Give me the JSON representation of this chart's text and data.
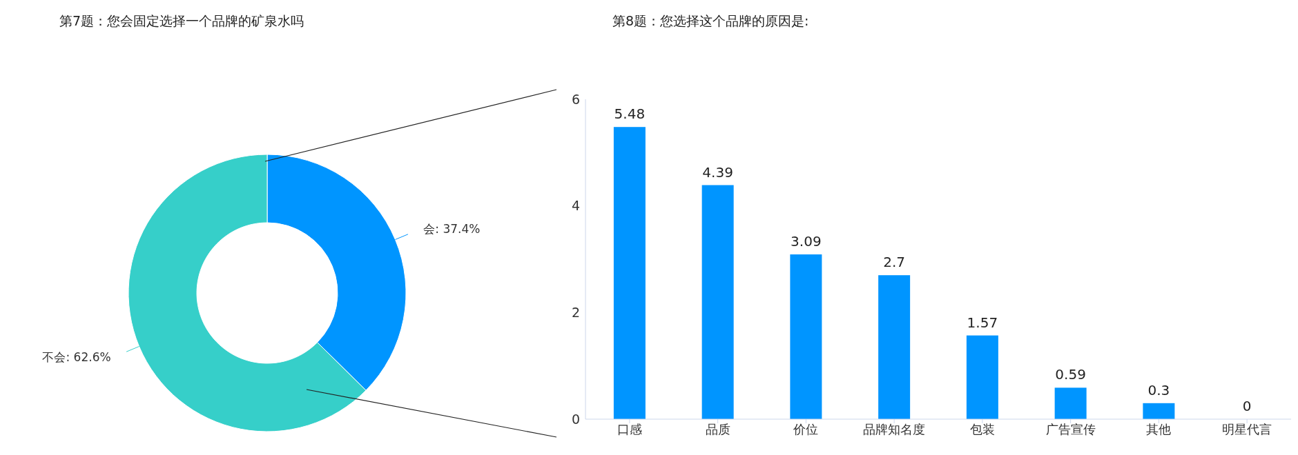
{
  "chart_data": [
    {
      "type": "donut",
      "title": "第7题：您会固定选择一个品牌的矿泉水吗",
      "categories": [
        "会",
        "不会"
      ],
      "values": [
        37.4,
        62.6
      ],
      "colors": [
        "#0095ff",
        "#36cfc9"
      ],
      "value_labels": [
        "37.4%",
        "62.6%"
      ]
    },
    {
      "type": "bar",
      "title": "第8题：您选择这个品牌的原因是:",
      "categories": [
        "口感",
        "品质",
        "价位",
        "品牌知名度",
        "包装",
        "广告宣传",
        "其他",
        "明星代言"
      ],
      "values": [
        5.48,
        4.39,
        3.09,
        2.7,
        1.57,
        0.59,
        0.3,
        0
      ],
      "color": "#0095ff",
      "ylim": [
        0,
        6
      ],
      "yticks": [
        0,
        2,
        4,
        6
      ],
      "grid": false,
      "data_labels": true,
      "legend": false
    }
  ]
}
